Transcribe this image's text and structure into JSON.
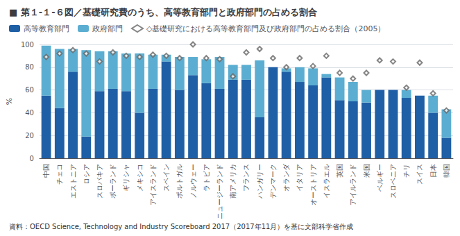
{
  "chart_data": {
    "type": "bar",
    "title": "■ 第１-１-６図／基礎研究費のうち、高等教育部門と政府部門の占める割合",
    "source": "資料：OECD Science, Technology and Industry Scoreboard 2017（2017年11月）を基に文部科学省作成",
    "ylabel": "%",
    "categories": [
      "中国",
      "チェコ",
      "エストニア",
      "ロシア",
      "スロバキア",
      "ポーランド",
      "ギリシャ",
      "メキシコ",
      "アイスランド",
      "スペイン",
      "ポルトガル",
      "ノルウェー",
      "ラトビア",
      "ニュージーランド",
      "南アメリカ",
      "フランス",
      "ハンガリー",
      "デンマーク",
      "オランダ",
      "イタリア",
      "オーストリア",
      "イスラエル",
      "英国",
      "アイルランド",
      "米国",
      "ベルギー",
      "スロベニア",
      "チリ",
      "スイス",
      "日本",
      "韓国"
    ],
    "series": [
      {
        "name": "高等教育部門",
        "type": "bar",
        "color": "#1F5FA6",
        "values": [
          55,
          44,
          76,
          19,
          59,
          61,
          59,
          40,
          61,
          85,
          60,
          73,
          66,
          61,
          69,
          69,
          36,
          80,
          76,
          67,
          64,
          71,
          51,
          50,
          49,
          60,
          60,
          53,
          55,
          40,
          18
        ]
      },
      {
        "name": "政府部門",
        "type": "bar",
        "color": "#5BAED1",
        "values": [
          44,
          52,
          20,
          76,
          35,
          33,
          33,
          52,
          30,
          6,
          29,
          16,
          21,
          28,
          13,
          13,
          50,
          0,
          3,
          13,
          15,
          3,
          20,
          17,
          11,
          0,
          0,
          7,
          0,
          15,
          25
        ]
      },
      {
        "name": "◇基礎研究における高等教育部門及び政府部門の占める割合（2005）",
        "type": "scatter",
        "marker": "diamond",
        "color": "#666666",
        "values": [
          89,
          92,
          95,
          92,
          85,
          93,
          90,
          89,
          91,
          90,
          88,
          100,
          88,
          87,
          72,
          93,
          96,
          88,
          80,
          88,
          81,
          90,
          75,
          70,
          75,
          86,
          85,
          62,
          84,
          57,
          42
        ]
      }
    ],
    "stacked": true,
    "ylim": [
      0,
      100
    ],
    "yticks": [
      0,
      20,
      40,
      60,
      80,
      100
    ],
    "grid": true,
    "legend": "top"
  }
}
